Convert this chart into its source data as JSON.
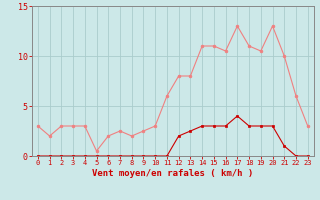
{
  "hours": [
    0,
    1,
    2,
    3,
    4,
    5,
    6,
    7,
    8,
    9,
    10,
    11,
    12,
    13,
    14,
    15,
    16,
    17,
    18,
    19,
    20,
    21,
    22,
    23
  ],
  "rafales": [
    3.0,
    2.0,
    3.0,
    3.0,
    3.0,
    0.5,
    2.0,
    2.5,
    2.0,
    2.5,
    3.0,
    6.0,
    8.0,
    8.0,
    11.0,
    11.0,
    10.5,
    13.0,
    11.0,
    10.5,
    13.0,
    10.0,
    6.0,
    3.0
  ],
  "moyen": [
    0.0,
    0.0,
    0.0,
    0.0,
    0.0,
    0.0,
    0.0,
    0.0,
    0.0,
    0.0,
    0.0,
    0.0,
    2.0,
    2.5,
    3.0,
    3.0,
    3.0,
    4.0,
    3.0,
    3.0,
    3.0,
    1.0,
    0.0,
    0.0
  ],
  "color_rafales": "#f08080",
  "color_moyen": "#cc0000",
  "bg_color": "#cce8e8",
  "grid_color": "#aacccc",
  "xlabel": "Vent moyen/en rafales ( km/h )",
  "ylim": [
    0,
    15
  ],
  "yticks": [
    0,
    5,
    10,
    15
  ],
  "tick_color": "#cc0000",
  "spine_color": "#888888"
}
